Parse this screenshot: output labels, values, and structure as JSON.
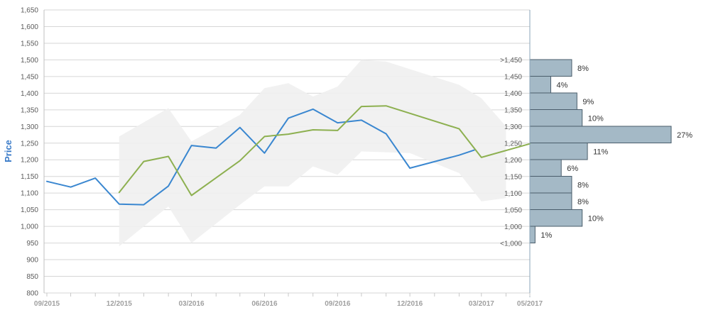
{
  "chart_data": {
    "type": "line",
    "title": "",
    "ylabel": "Price",
    "ylim": [
      800,
      1650
    ],
    "yticks": [
      "1,650",
      "1,600",
      "1,550",
      "1,500",
      "1,450",
      "1,400",
      "1,350",
      "1,300",
      "1,250",
      "1,200",
      "1,150",
      "1,100",
      "1,050",
      "1,000",
      "950",
      "900",
      "850",
      "800"
    ],
    "x_tick_labels": [
      "09/2015",
      "12/2015",
      "03/2016",
      "06/2016",
      "09/2016",
      "12/2016",
      "03/2017",
      "05/2017"
    ],
    "series": [
      {
        "color": "#3a87d0",
        "points": [
          [
            "2015-09",
            1135
          ],
          [
            "2015-10",
            1118
          ],
          [
            "2015-11",
            1145
          ],
          [
            "2015-12",
            1067
          ],
          [
            "2016-01",
            1065
          ],
          [
            "2016-02",
            1121
          ],
          [
            "2016-03",
            1243
          ],
          [
            "2016-04",
            1235
          ],
          [
            "2016-05",
            1297
          ],
          [
            "2016-06",
            1220
          ],
          [
            "2016-07",
            1325
          ],
          [
            "2016-08",
            1352
          ],
          [
            "2016-09",
            1311
          ],
          [
            "2016-10",
            1319
          ],
          [
            "2016-11",
            1278
          ],
          [
            "2016-12",
            1175
          ],
          [
            "2017-02",
            1214
          ],
          [
            "2017-02-20",
            1229
          ]
        ]
      },
      {
        "color": "#8db050",
        "points": [
          [
            "2015-12",
            1102
          ],
          [
            "2016-01",
            1195
          ],
          [
            "2016-02",
            1210
          ],
          [
            "2016-03",
            1093
          ],
          [
            "2016-05",
            1197
          ],
          [
            "2016-06",
            1270
          ],
          [
            "2016-07",
            1277
          ],
          [
            "2016-08",
            1290
          ],
          [
            "2016-09",
            1288
          ],
          [
            "2016-10",
            1360
          ],
          [
            "2016-11",
            1362
          ],
          [
            "2017-02",
            1293
          ],
          [
            "2017-03",
            1207
          ],
          [
            "2017-05",
            1248
          ]
        ]
      }
    ],
    "range_band": {
      "color": "#efefef",
      "upper": [
        [
          "2015-12",
          1270
        ],
        [
          "2016-02",
          1355
        ],
        [
          "2016-03",
          1255
        ],
        [
          "2016-05",
          1335
        ],
        [
          "2016-06",
          1415
        ],
        [
          "2016-07",
          1430
        ],
        [
          "2016-08",
          1390
        ],
        [
          "2016-09",
          1420
        ],
        [
          "2016-10",
          1500
        ],
        [
          "2016-11",
          1495
        ],
        [
          "2017-02",
          1425
        ],
        [
          "2017-03",
          1385
        ],
        [
          "2017-04",
          1300
        ]
      ],
      "lower": [
        [
          "2017-04",
          1085
        ],
        [
          "2017-03",
          1075
        ],
        [
          "2017-02",
          1160
        ],
        [
          "2016-12",
          1220
        ],
        [
          "2016-10",
          1225
        ],
        [
          "2016-09",
          1155
        ],
        [
          "2016-08",
          1180
        ],
        [
          "2016-07",
          1120
        ],
        [
          "2016-06",
          1120
        ],
        [
          "2016-05",
          1065
        ],
        [
          "2016-03",
          950
        ],
        [
          "2016-02",
          1060
        ],
        [
          "2015-12",
          940
        ]
      ]
    },
    "distribution": {
      "color": "#a4b9c6",
      "bins": [
        {
          "label": ">1,450",
          "pct": "8%",
          "value": 8
        },
        {
          "label": "1,450",
          "pct": "4%",
          "value": 4
        },
        {
          "label": "1,400",
          "pct": "9%",
          "value": 9
        },
        {
          "label": "1,350",
          "pct": "10%",
          "value": 10
        },
        {
          "label": "1,300",
          "pct": "27%",
          "value": 27
        },
        {
          "label": "1,250",
          "pct": "11%",
          "value": 11
        },
        {
          "label": "1,200",
          "pct": "6%",
          "value": 6
        },
        {
          "label": "1,150",
          "pct": "8%",
          "value": 8
        },
        {
          "label": "1,100",
          "pct": "8%",
          "value": 8
        },
        {
          "label": "1,050",
          "pct": "10%",
          "value": 10
        },
        {
          "label": "1,000",
          "pct": "1%",
          "value": 1
        },
        {
          "label": "<1,000",
          "pct": "",
          "value": 0
        }
      ]
    },
    "grid": true
  }
}
